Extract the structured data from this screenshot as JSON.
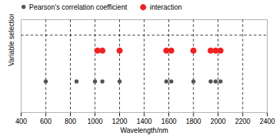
{
  "chart_data": {
    "type": "scatter",
    "xlabel": "Wavelength/nm",
    "ylabel": "Variable selection",
    "xlim": [
      400,
      2400
    ],
    "ylim": [
      0,
      3
    ],
    "xticks": [
      400,
      600,
      800,
      1000,
      1200,
      1400,
      1600,
      1800,
      2000,
      2200,
      2400
    ],
    "yticks": [],
    "tick_labels": "x",
    "grid": false,
    "legend": "top left",
    "hlines": [
      2.5
    ],
    "vlines": [
      600,
      800,
      1000,
      1200,
      1400,
      1600,
      1800,
      2000,
      2200
    ],
    "series": [
      {
        "name": "Pearson's correlation coefficient",
        "color": "#555555",
        "x": [
          600,
          850,
          1000,
          1060,
          1200,
          1580,
          1620,
          1800,
          1940,
          1980,
          2020
        ],
        "values": [
          1.0,
          1.0,
          1.0,
          1.0,
          1.0,
          1.0,
          1.0,
          1.0,
          1.0,
          1.0,
          1.0
        ]
      },
      {
        "name": "interaction",
        "color": "#ee2222",
        "x": [
          1020,
          1060,
          1200,
          1580,
          1620,
          1800,
          1940,
          1980,
          2020
        ],
        "values": [
          2.0,
          2.0,
          2.0,
          2.0,
          2.0,
          2.0,
          2.0,
          2.0,
          2.0
        ]
      }
    ]
  }
}
